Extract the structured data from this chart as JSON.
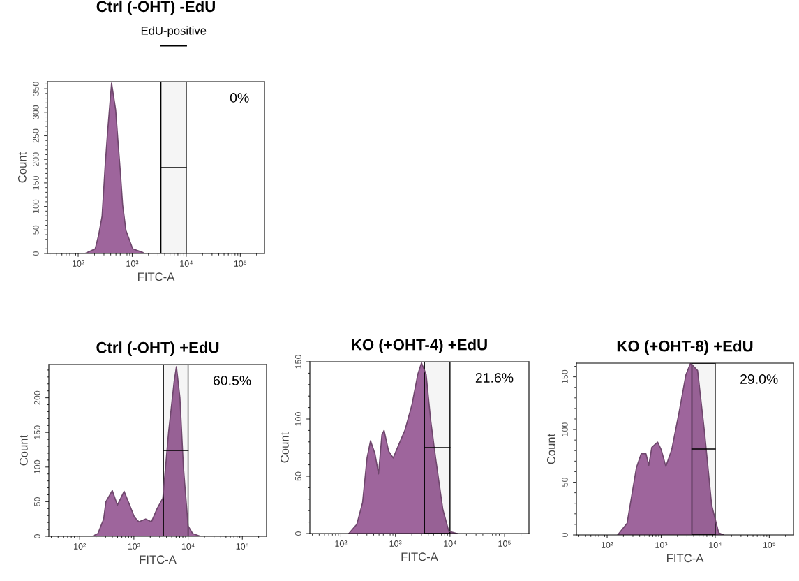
{
  "chart_data": [
    {
      "type": "area",
      "title": "Ctrl (-OHT) -EdU",
      "xlabel": "FITC-A",
      "ylabel": "Count",
      "log": "x",
      "x": [
        134,
        207,
        239,
        277,
        318,
        352,
        415,
        493,
        543,
        600,
        665,
        765,
        1020,
        1580,
        1700
      ],
      "values": [
        0,
        10,
        39,
        79,
        192,
        261,
        362,
        306,
        241,
        177,
        103,
        49,
        10,
        2,
        0
      ],
      "color": "#9e659c",
      "xlim": [
        27,
        280000
      ],
      "ylim": [
        0,
        365
      ],
      "xticks": [
        {
          "value": 100,
          "label": "10²"
        },
        {
          "value": 1000,
          "label": "10³"
        },
        {
          "value": 10000,
          "label": "10⁴"
        },
        {
          "value": 100000,
          "label": "10⁵"
        }
      ],
      "yticks": [
        0,
        50,
        100,
        150,
        200,
        250,
        300,
        350
      ],
      "bands": [
        {
          "axis": "x",
          "from": 3400,
          "to": 10000,
          "label": "0%",
          "color": "#000000"
        }
      ],
      "annotations": [
        "EdU-positive"
      ]
    },
    {
      "type": "area",
      "title": "Ctrl (-OHT) +EdU",
      "xlabel": "FITC-A",
      "ylabel": "Count",
      "log": "x",
      "x": [
        172,
        217,
        277,
        305,
        400,
        496,
        660,
        836,
        1020,
        1230,
        1650,
        2110,
        2680,
        3420,
        4350,
        5540,
        6090,
        7060,
        8200,
        10000,
        12100,
        16900
      ],
      "values": [
        0,
        4,
        25,
        50,
        66,
        45,
        65,
        45,
        28,
        21,
        25,
        21,
        40,
        55,
        149,
        224,
        245,
        200,
        99,
        15,
        4,
        0
      ],
      "color": "#9e659c",
      "xlim": [
        27,
        280000
      ],
      "ylim": [
        0,
        248
      ],
      "xticks": [
        {
          "value": 100,
          "label": "10²"
        },
        {
          "value": 1000,
          "label": "10³"
        },
        {
          "value": 10000,
          "label": "10⁴"
        },
        {
          "value": 100000,
          "label": "10⁵"
        }
      ],
      "yticks": [
        0,
        50,
        100,
        150,
        200
      ],
      "bands": [
        {
          "axis": "x",
          "from": 3500,
          "to": 10000,
          "label": "60.5%",
          "color": "#000000"
        }
      ]
    },
    {
      "type": "area",
      "title": "KO (+OHT-4) +EdU",
      "xlabel": "FITC-A",
      "ylabel": "Count",
      "log": "x",
      "x": [
        140,
        196,
        250,
        302,
        350,
        420,
        490,
        565,
        620,
        750,
        910,
        1160,
        1490,
        2000,
        2570,
        3000,
        3650,
        4450,
        5450,
        7400,
        9500,
        13500
      ],
      "values": [
        0,
        8,
        27,
        66,
        81,
        70,
        52,
        86,
        90,
        72,
        66,
        78,
        90,
        112,
        139,
        149,
        139,
        98,
        66,
        21,
        2,
        0
      ],
      "color": "#9e659c",
      "xlim": [
        27,
        280000
      ],
      "ylim": [
        0,
        150
      ],
      "xticks": [
        {
          "value": 100,
          "label": "10²"
        },
        {
          "value": 1000,
          "label": "10³"
        },
        {
          "value": 10000,
          "label": "10⁴"
        },
        {
          "value": 100000,
          "label": "10⁵"
        }
      ],
      "yticks": [
        0,
        50,
        100,
        150
      ],
      "bands": [
        {
          "axis": "x",
          "from": 3400,
          "to": 10000,
          "label": "21.6%",
          "color": "#000000"
        }
      ]
    },
    {
      "type": "area",
      "title": "KO (+OHT-8) +EdU",
      "xlabel": "FITC-A",
      "ylabel": "Count",
      "log": "x",
      "x": [
        157,
        234,
        349,
        427,
        523,
        590,
        670,
        860,
        1000,
        1220,
        1570,
        2120,
        2870,
        3500,
        4720,
        6350,
        8600,
        11600,
        14200
      ],
      "values": [
        0,
        11,
        64,
        77,
        77,
        66,
        83,
        88,
        81,
        65,
        81,
        115,
        152,
        163,
        156,
        97,
        28,
        2,
        0
      ],
      "color": "#9e659c",
      "xlim": [
        27,
        280000
      ],
      "ylim": [
        0,
        163
      ],
      "xticks": [
        {
          "value": 100,
          "label": "10²"
        },
        {
          "value": 1000,
          "label": "10³"
        },
        {
          "value": 10000,
          "label": "10⁴"
        },
        {
          "value": 100000,
          "label": "10⁵"
        }
      ],
      "yticks": [
        0,
        50,
        100,
        150
      ],
      "bands": [
        {
          "axis": "x",
          "from": 3700,
          "to": 10000,
          "label": "29.0%",
          "color": "#000000"
        }
      ]
    }
  ]
}
